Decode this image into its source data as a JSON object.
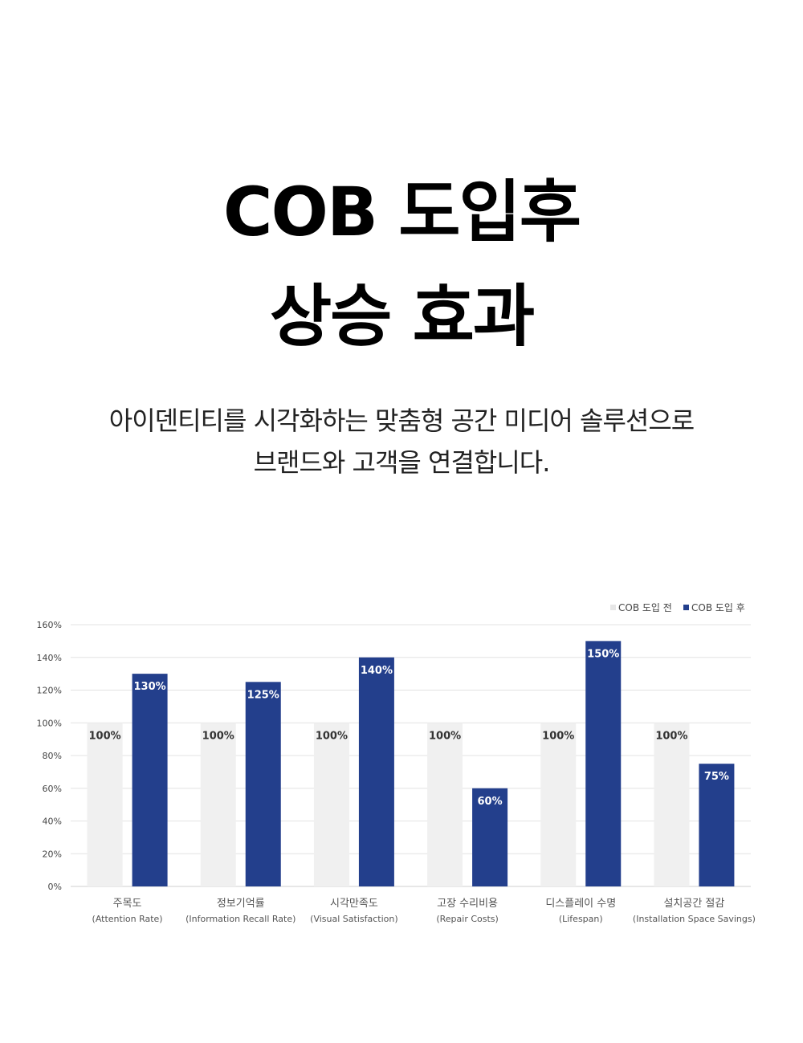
{
  "header": {
    "title_line1": "COB 도입후",
    "title_line2": "상승 효과",
    "subtitle_line1": "아이덴티티를 시각화하는 맞춤형 공간 미디어 솔루션으로",
    "subtitle_line2": "브랜드와 고객을 연결합니다."
  },
  "chart_data": {
    "type": "bar",
    "title": "",
    "xlabel": "",
    "ylabel": "",
    "ylim": [
      0,
      160
    ],
    "yticks": [
      "0%",
      "20%",
      "40%",
      "60%",
      "80%",
      "100%",
      "120%",
      "140%",
      "160%"
    ],
    "grid": true,
    "legend_position": "top-right",
    "categories": [
      {
        "name": "주목도",
        "sub": "(Attention  Rate)"
      },
      {
        "name": "정보기억률",
        "sub": "(Information  Recall Rate)"
      },
      {
        "name": "시각만족도",
        "sub": "(Visual Satisfaction)"
      },
      {
        "name": "고장 수리비용",
        "sub": "(Repair Costs)"
      },
      {
        "name": "디스플레이 수명",
        "sub": "(Lifespan)"
      },
      {
        "name": "설치공간 절감",
        "sub": "(Installation Space Savings)"
      }
    ],
    "series": [
      {
        "name": "COB 도입 전",
        "color": "#f0f0f0",
        "values": [
          100,
          100,
          100,
          100,
          100,
          100
        ],
        "labels": [
          "100%",
          "100%",
          "100%",
          "100%",
          "100%",
          "100%"
        ]
      },
      {
        "name": "COB 도입 후",
        "color": "#233f8c",
        "values": [
          130,
          125,
          140,
          60,
          150,
          75
        ],
        "labels": [
          "130%",
          "125%",
          "140%",
          "60%",
          "150%",
          "75%"
        ]
      }
    ]
  }
}
